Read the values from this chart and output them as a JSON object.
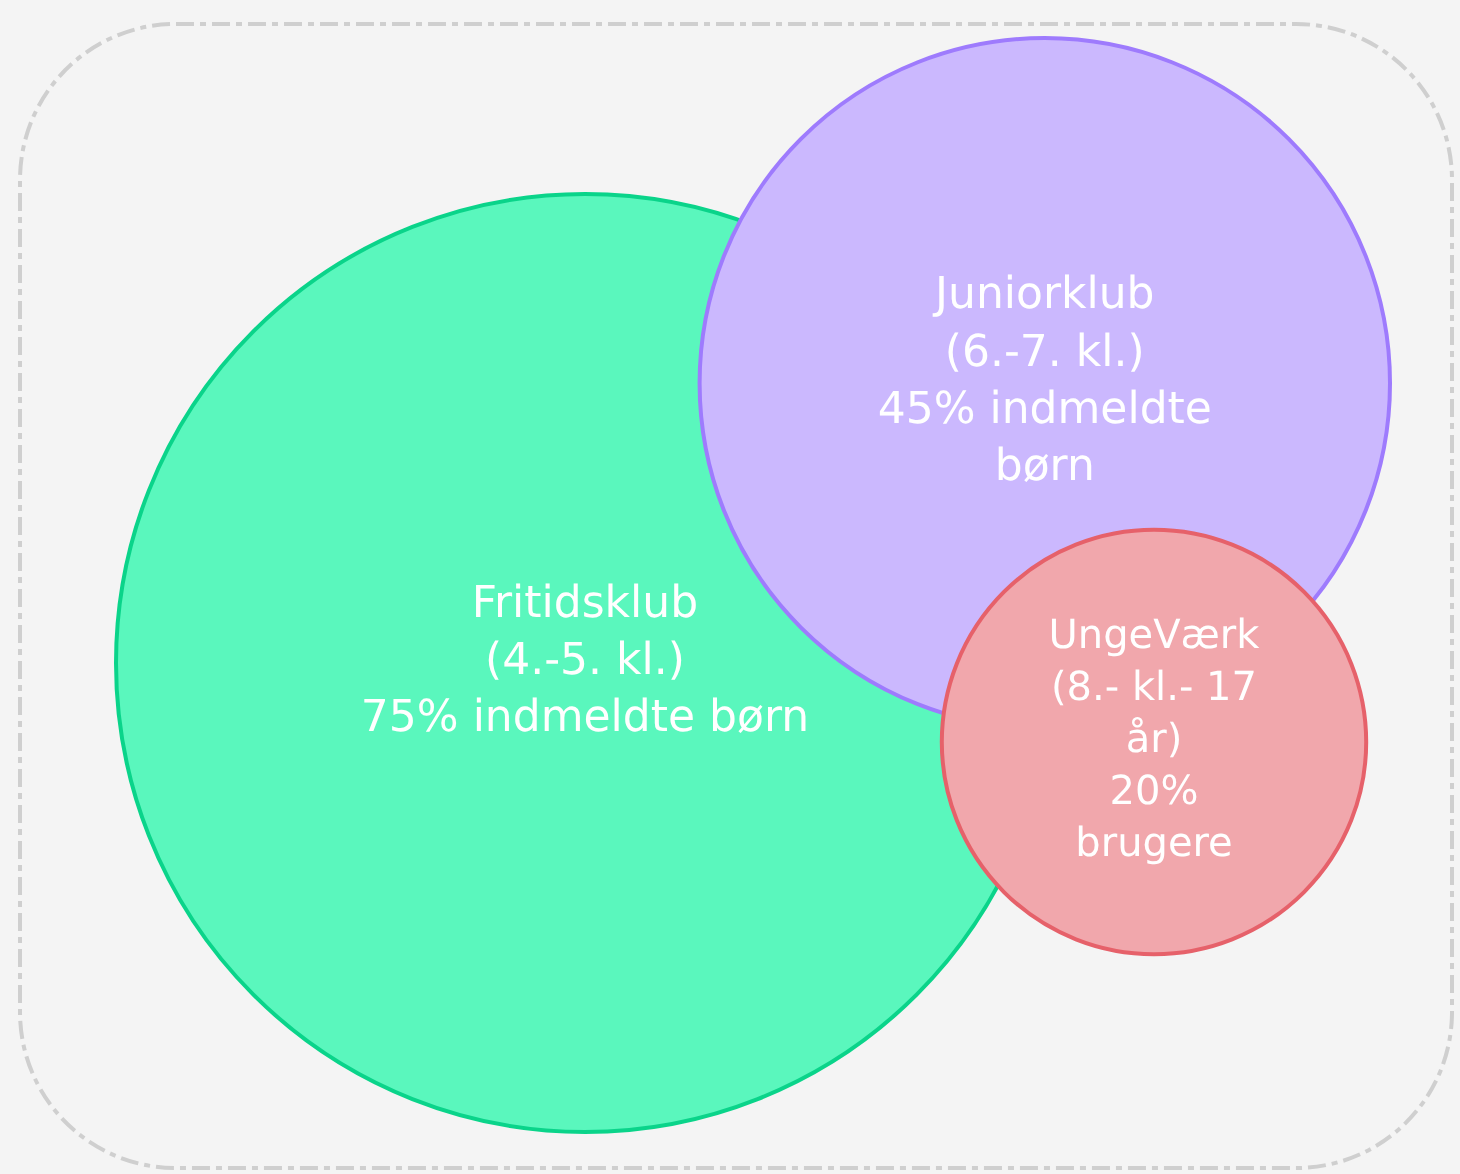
{
  "chart_data": {
    "type": "other",
    "categories": [
      "Fritidsklub\n(4.-5. kl.)",
      "Juniorklub\n(6.-7. kl.)",
      "UngeVærk\n(8.- kl.- 17\når)"
    ],
    "values": [
      75,
      45,
      20
    ],
    "value_labels": [
      "75% indmeldte børn",
      "45% indmeldte\nbørn",
      "20%\nbrugere"
    ],
    "colors": [
      "#5af7bd",
      "#cbb8fe",
      "#f1a7ac"
    ]
  }
}
